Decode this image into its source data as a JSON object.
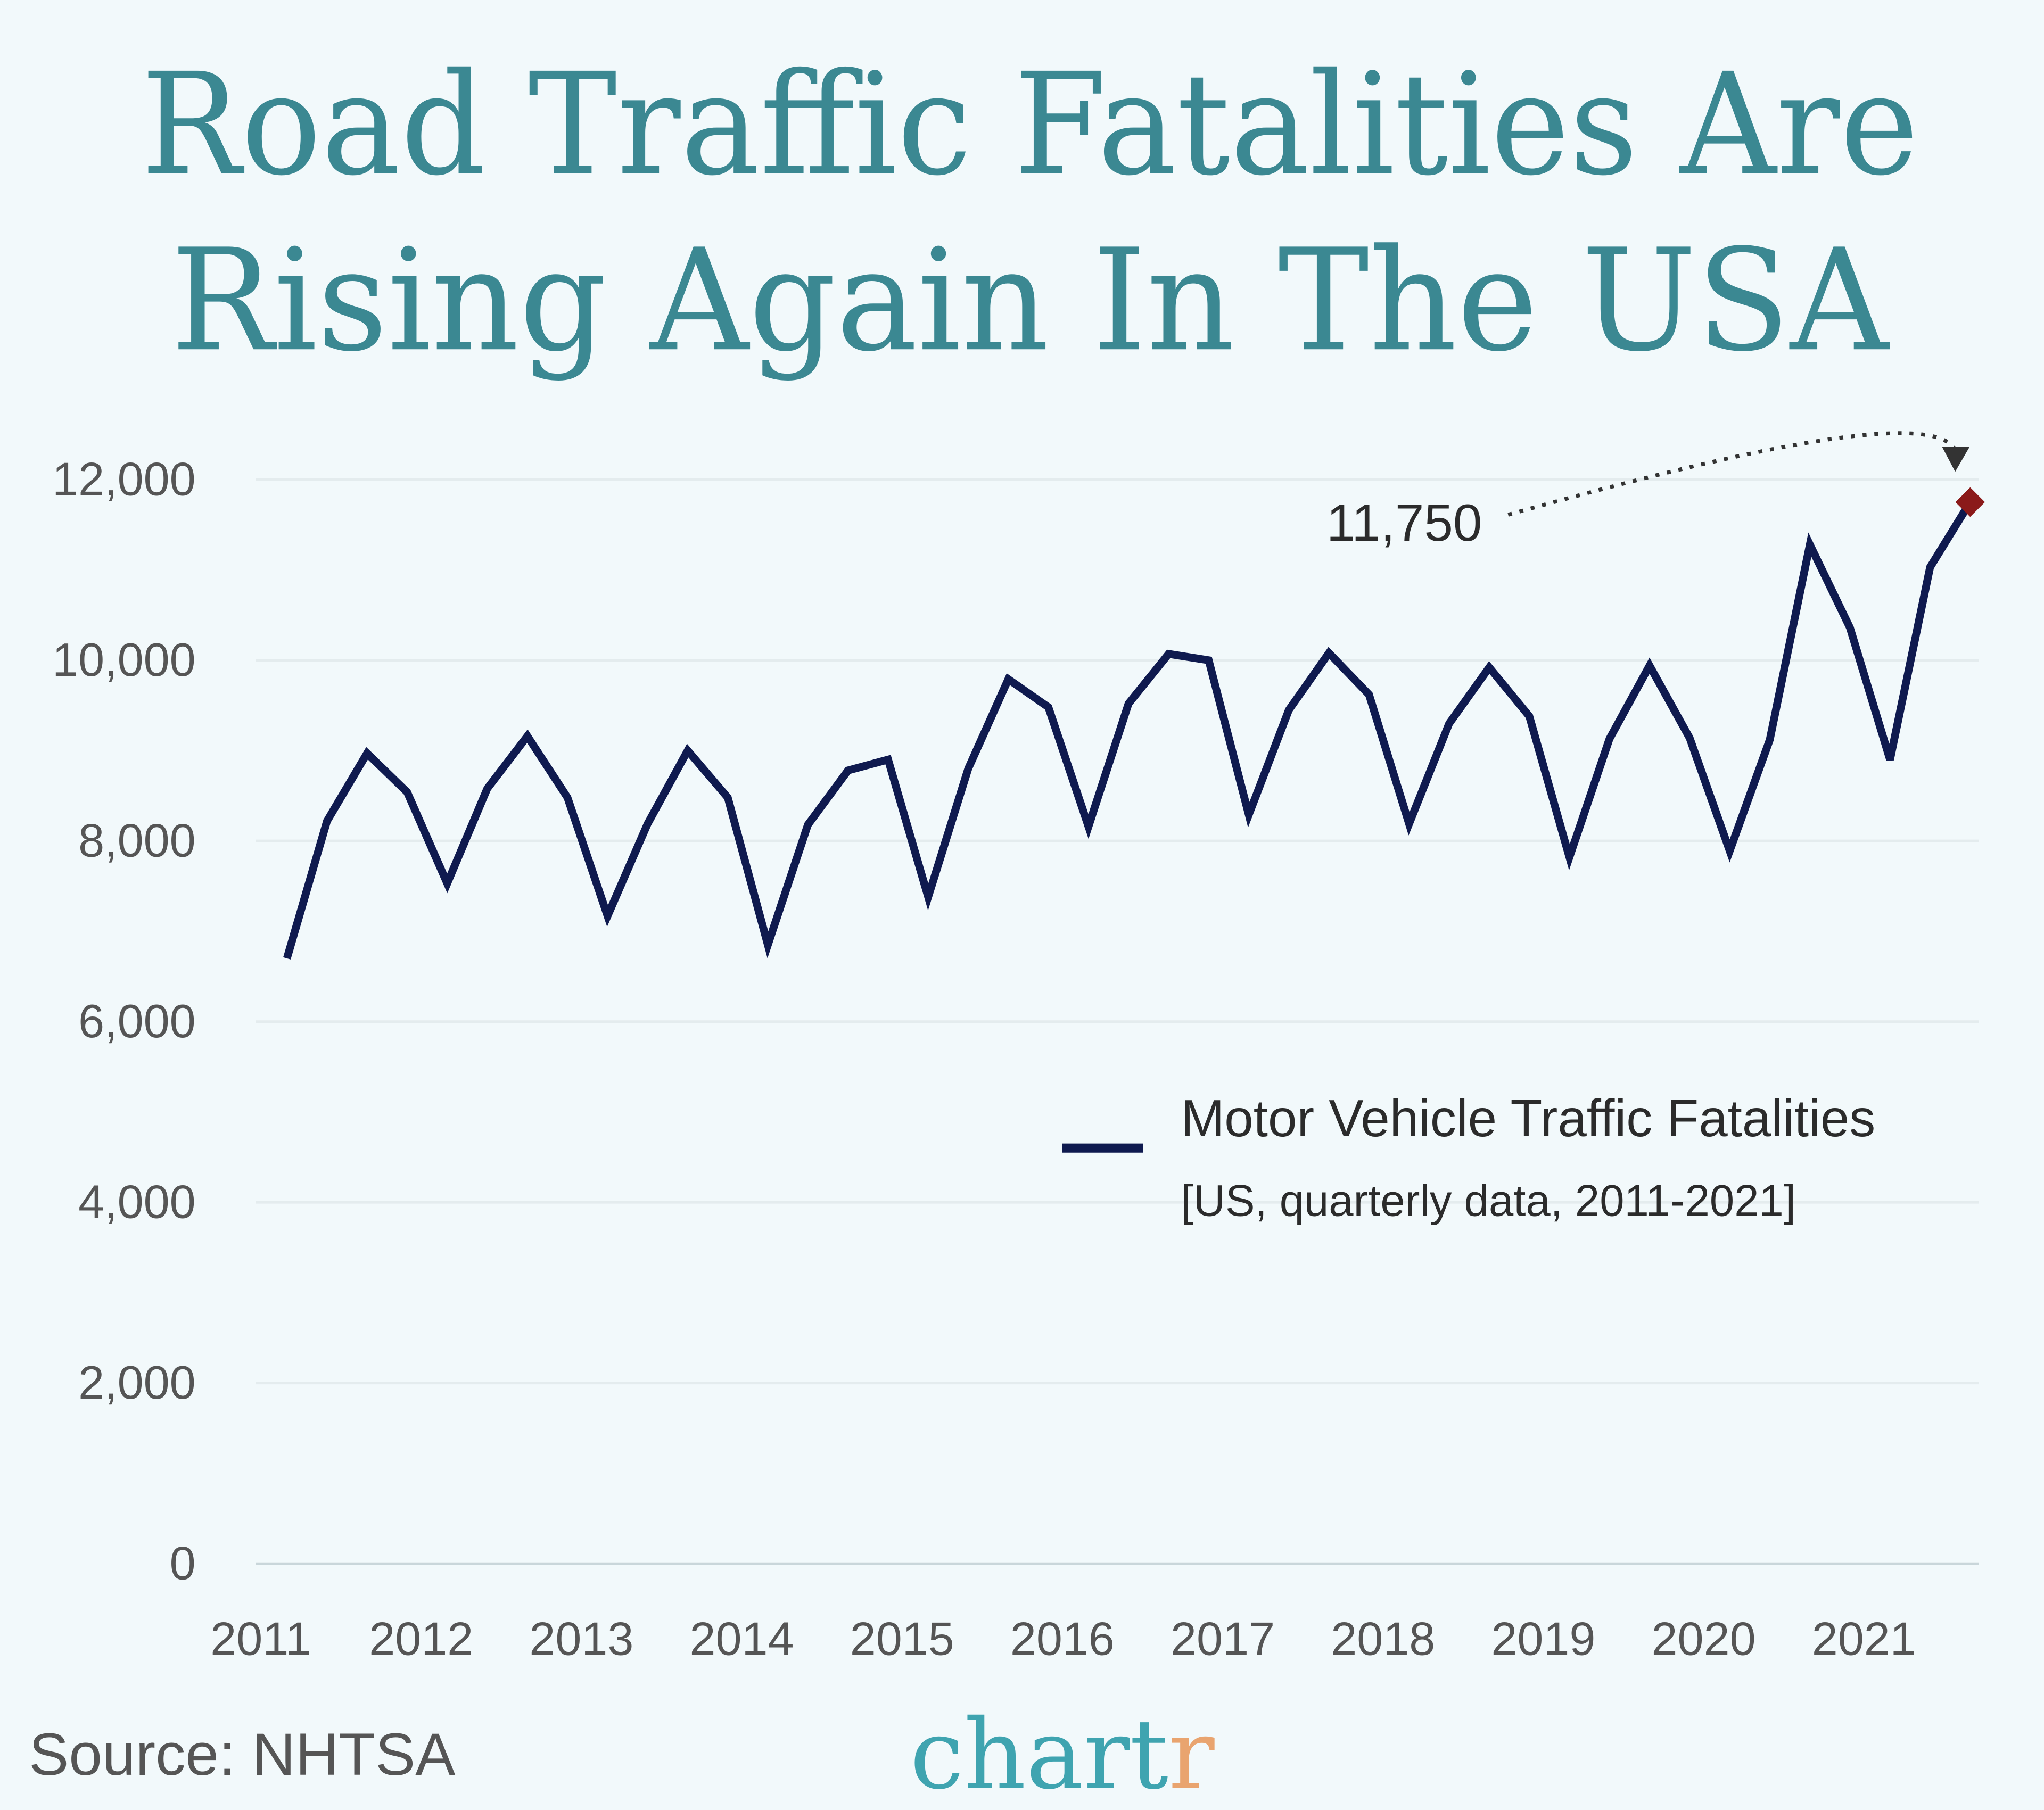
{
  "chart_data": {
    "type": "line",
    "title": "Road Traffic Fatalities Are Rising Again In The USA",
    "title_lines": [
      "Road Traffic Fatalities Are",
      "Rising Again In The USA"
    ],
    "xlabel": "",
    "ylabel": "",
    "ylim": [
      0,
      12000
    ],
    "yticks": [
      "0",
      "2,000",
      "4,000",
      "6,000",
      "8,000",
      "10,000",
      "12,000"
    ],
    "ytick_values": [
      0,
      2000,
      4000,
      6000,
      8000,
      10000,
      12000
    ],
    "xticks": [
      "2011",
      "2012",
      "2013",
      "2014",
      "2015",
      "2016",
      "2017",
      "2018",
      "2019",
      "2020",
      "2021"
    ],
    "grid": true,
    "legend_position": "center-right",
    "series": [
      {
        "name": "Motor Vehicle Traffic Fatalities",
        "color": "#0f1a4f",
        "x": [
          "2011 Q1",
          "2011 Q2",
          "2011 Q3",
          "2011 Q4",
          "2012 Q1",
          "2012 Q2",
          "2012 Q3",
          "2012 Q4",
          "2013 Q1",
          "2013 Q2",
          "2013 Q3",
          "2013 Q4",
          "2014 Q1",
          "2014 Q2",
          "2014 Q3",
          "2014 Q4",
          "2015 Q1",
          "2015 Q2",
          "2015 Q3",
          "2015 Q4",
          "2016 Q1",
          "2016 Q2",
          "2016 Q3",
          "2016 Q4",
          "2017 Q1",
          "2017 Q2",
          "2017 Q3",
          "2017 Q4",
          "2018 Q1",
          "2018 Q2",
          "2018 Q3",
          "2018 Q4",
          "2019 Q1",
          "2019 Q2",
          "2019 Q3",
          "2019 Q4",
          "2020 Q1",
          "2020 Q2",
          "2020 Q3",
          "2020 Q4",
          "2021 Q1",
          "2021 Q2",
          "2021 Q3"
        ],
        "values": [
          6700,
          8220,
          8970,
          8540,
          7530,
          8580,
          9160,
          8480,
          7170,
          8190,
          9000,
          8480,
          6850,
          8180,
          8780,
          8900,
          7380,
          8800,
          9790,
          9480,
          8160,
          9520,
          10070,
          10000,
          8290,
          9450,
          10080,
          9620,
          8190,
          9300,
          9920,
          9380,
          7820,
          9130,
          9940,
          9140,
          7890,
          9120,
          11280,
          10360,
          8900,
          11030,
          11750
        ]
      }
    ],
    "legend_subtitle": "[US, quarterly data, 2011-2021]",
    "annotation": {
      "text": "11,750",
      "color": "#8b1a1a"
    },
    "source": "Source: NHTSA",
    "logo": {
      "main": "chart",
      "accent": "r",
      "main_color": "#3fa4b0",
      "accent_color": "#e9a46f"
    },
    "colors": {
      "background": "#f2f9fb",
      "title": "#3b8892",
      "grid": "#e4ecee"
    }
  }
}
